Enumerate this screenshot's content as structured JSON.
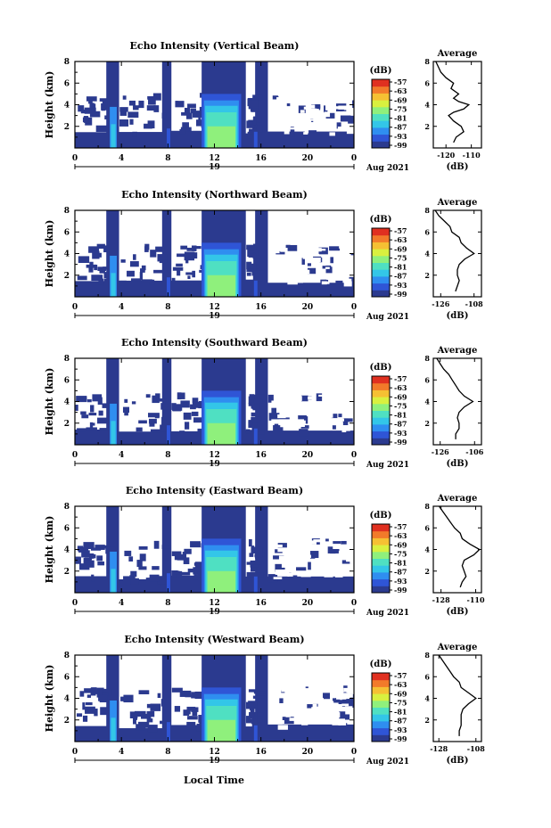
{
  "figure": {
    "xlabel": "Local Time",
    "date_label": "Aug 2021",
    "day_label": "19",
    "x_ticks": [
      "0",
      "4",
      "8",
      "12",
      "16",
      "20",
      "0"
    ],
    "y_ticks": [
      "2",
      "4",
      "6",
      "8"
    ],
    "ylabel": "Height (km)",
    "colorbar_label": "(dB)",
    "colorbar_ticks": [
      "-57",
      "-63",
      "-69",
      "-75",
      "-81",
      "-87",
      "-93",
      "-99"
    ],
    "average_title": "Average",
    "average_xlabel": "(dB)"
  },
  "colors": {
    "background_echo": "#2b3a8f",
    "colormap": [
      "#2b3a8f",
      "#2f55d6",
      "#2f8ef0",
      "#33c6e8",
      "#4fe0c2",
      "#8ff07c",
      "#d9f03f",
      "#f5c033",
      "#f27a2a",
      "#e03020"
    ],
    "line": "#000000"
  },
  "chart_data": [
    {
      "type": "heatmap",
      "title": "Echo Intensity (Vertical Beam)",
      "xlim": [
        0,
        24
      ],
      "ylim": [
        0,
        8
      ],
      "colorbar_range_db": [
        -99,
        -57
      ],
      "clear_sky_gaps_h": [
        [
          0,
          2.7
        ],
        [
          3.8,
          7.5
        ],
        [
          8.3,
          10.9
        ],
        [
          14.7,
          15.5
        ],
        [
          16.6,
          24
        ]
      ],
      "profile": {
        "title": "Average",
        "xticks": [
          "-120",
          "-110"
        ],
        "xlim": [
          -125,
          -106
        ],
        "ylim": [
          0,
          8
        ],
        "height_km": [
          0.5,
          1,
          1.5,
          2,
          2.5,
          3,
          3.3,
          3.6,
          4,
          4.3,
          4.6,
          5,
          5.5,
          6,
          6.5,
          7,
          7.5,
          8
        ],
        "db": [
          -117,
          -116,
          -113,
          -114,
          -117,
          -119,
          -117,
          -113,
          -111,
          -115,
          -117,
          -115,
          -118,
          -117,
          -120,
          -122,
          -123,
          -124
        ]
      }
    },
    {
      "type": "heatmap",
      "title": "Echo Intensity (Northward Beam)",
      "xlim": [
        0,
        24
      ],
      "ylim": [
        0,
        8
      ],
      "colorbar_range_db": [
        -99,
        -57
      ],
      "clear_sky_gaps_h": [
        [
          0,
          2.7
        ],
        [
          3.8,
          7.5
        ],
        [
          8.3,
          10.9
        ],
        [
          14.7,
          15.5
        ],
        [
          16.6,
          24
        ]
      ],
      "profile": {
        "title": "Average",
        "xticks": [
          "-126",
          "-108"
        ],
        "xlim": [
          -130,
          -104
        ],
        "ylim": [
          0,
          8
        ],
        "height_km": [
          0.5,
          1,
          1.5,
          2,
          2.5,
          3,
          3.5,
          4,
          4.5,
          5,
          5.5,
          6,
          6.5,
          7,
          7.5,
          8
        ],
        "db": [
          -118,
          -117,
          -116,
          -117,
          -117,
          -116,
          -113,
          -108,
          -112,
          -115,
          -116,
          -120,
          -121,
          -124,
          -127,
          -129
        ]
      }
    },
    {
      "type": "heatmap",
      "title": "Echo Intensity (Southward Beam)",
      "xlim": [
        0,
        24
      ],
      "ylim": [
        0,
        8
      ],
      "colorbar_range_db": [
        -99,
        -57
      ],
      "clear_sky_gaps_h": [
        [
          0,
          2.7
        ],
        [
          3.8,
          7.5
        ],
        [
          8.3,
          10.9
        ],
        [
          14.7,
          15.5
        ],
        [
          16.6,
          24
        ]
      ],
      "profile": {
        "title": "Average",
        "xticks": [
          "-126",
          "-106"
        ],
        "xlim": [
          -130,
          -102
        ],
        "ylim": [
          0,
          8
        ],
        "height_km": [
          0.5,
          1,
          1.5,
          2,
          2.5,
          3,
          3.5,
          4,
          4.5,
          5,
          5.5,
          6,
          6.5,
          7,
          7.5,
          8
        ],
        "db": [
          -117,
          -117,
          -115,
          -115,
          -116,
          -115,
          -112,
          -107,
          -112,
          -115,
          -117,
          -119,
          -121,
          -124,
          -126,
          -128
        ]
      }
    },
    {
      "type": "heatmap",
      "title": "Echo Intensity (Eastward Beam)",
      "xlim": [
        0,
        24
      ],
      "ylim": [
        0,
        8
      ],
      "colorbar_range_db": [
        -99,
        -57
      ],
      "clear_sky_gaps_h": [
        [
          0,
          2.7
        ],
        [
          3.8,
          7.5
        ],
        [
          8.3,
          10.9
        ],
        [
          14.7,
          15.5
        ],
        [
          16.6,
          24
        ]
      ],
      "profile": {
        "title": "Average",
        "xticks": [
          "-128",
          "-110"
        ],
        "xlim": [
          -132,
          -107
        ],
        "ylim": [
          0,
          8
        ],
        "height_km": [
          0.5,
          1,
          1.5,
          2,
          2.5,
          3,
          3.5,
          4,
          4.5,
          5,
          5.5,
          6,
          6.5,
          7,
          7.5,
          8
        ],
        "db": [
          -118,
          -117,
          -115,
          -116,
          -117,
          -116,
          -111,
          -108,
          -113,
          -117,
          -118,
          -121,
          -123,
          -125,
          -127,
          -129
        ]
      }
    },
    {
      "type": "heatmap",
      "title": "Echo Intensity (Westward Beam)",
      "xlim": [
        0,
        24
      ],
      "ylim": [
        0,
        8
      ],
      "colorbar_range_db": [
        -99,
        -57
      ],
      "clear_sky_gaps_h": [
        [
          0,
          2.7
        ],
        [
          3.8,
          7.5
        ],
        [
          8.3,
          10.9
        ],
        [
          14.7,
          15.5
        ],
        [
          16.6,
          24
        ]
      ],
      "profile": {
        "title": "Average",
        "xticks": [
          "-128",
          "-108"
        ],
        "xlim": [
          -131,
          -105
        ],
        "ylim": [
          0,
          8
        ],
        "height_km": [
          0.5,
          1,
          1.5,
          2,
          2.5,
          3,
          3.5,
          4,
          4.5,
          5,
          5.5,
          6,
          6.5,
          7,
          7.5,
          8
        ],
        "db": [
          -117,
          -117,
          -116,
          -116,
          -116,
          -115,
          -112,
          -108,
          -112,
          -116,
          -117,
          -120,
          -122,
          -124,
          -126,
          -128
        ]
      }
    }
  ]
}
